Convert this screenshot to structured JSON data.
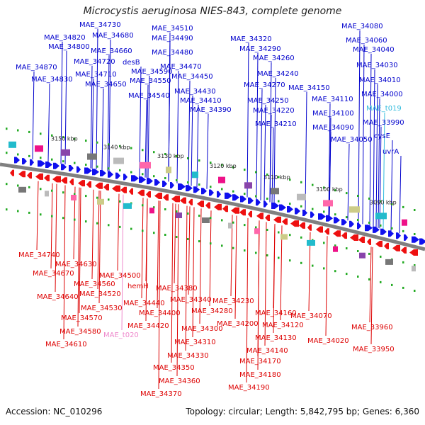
{
  "title": "Microcystis aeruginosa NIES-843, complete genome",
  "footer": {
    "accession": "Accession: NC_010296",
    "summary": "Topology: circular; Length: 5,842,795 bp; Genes: 6,360"
  },
  "colors": {
    "forward_label": "#0000cc",
    "reverse_label": "#dd0000",
    "trna_forward": "#33bbdd",
    "trna_reverse": "#ee88cc",
    "backbone": "#808080",
    "forward_gene": "#1010ee",
    "reverse_gene": "#ee1010"
  },
  "kbp_ticks": [
    "3150 kbp",
    "3140 kbp",
    "3130 kbp",
    "3120 kbp",
    "3110 kbp",
    "3100 kbp",
    "3090 kbp"
  ],
  "forward_genes": [
    "MAE_34730",
    "MAE_34820",
    "MAE_34680",
    "MAE_34800",
    "MAE_34660",
    "MAE_34720",
    "MAE_34870",
    "MAE_34710",
    "MAE_34830",
    "MAE_34650",
    "MAE_34510",
    "MAE_34490",
    "MAE_34480",
    "desB",
    "MAE_34470",
    "MAE_34590",
    "MAE_34450",
    "MAE_34550",
    "MAE_34540",
    "MAE_34430",
    "MAE_34410",
    "MAE_34390",
    "MAE_34320",
    "MAE_34290",
    "MAE_34260",
    "MAE_34240",
    "MAE_34270",
    "MAE_34150",
    "MAE_34250",
    "MAE_34220",
    "MAE_34210",
    "MAE_34080",
    "MAE_34060",
    "MAE_34040",
    "MAE_34030",
    "MAE_34010",
    "MAE_34000",
    "MAE_34110",
    "MAE_t019",
    "MAE_34100",
    "MAE_33990",
    "MAE_34090",
    "cysE",
    "MAE_34050",
    "uvrA"
  ],
  "reverse_genes": [
    "MAE_34740",
    "MAE_34630",
    "MAE_34670",
    "MAE_34500",
    "MAE_34560",
    "hemH",
    "MAE_34640",
    "MAE_34520",
    "MAE_34380",
    "MAE_34530",
    "MAE_34440",
    "MAE_34340",
    "MAE_34570",
    "MAE_34400",
    "MAE_34280",
    "MAE_34230",
    "MAE_34580",
    "MAE_34420",
    "MAE_34300",
    "MAE_34200",
    "MAE_34160",
    "MAE_34070",
    "MAE_t020",
    "MAE_34610",
    "MAE_34310",
    "MAE_34120",
    "MAE_34130",
    "MAE_34020",
    "MAE_33960",
    "MAE_34330",
    "MAE_34140",
    "MAE_33950",
    "MAE_34350",
    "MAE_34170",
    "MAE_34180",
    "MAE_34360",
    "MAE_34190",
    "MAE_34370"
  ]
}
